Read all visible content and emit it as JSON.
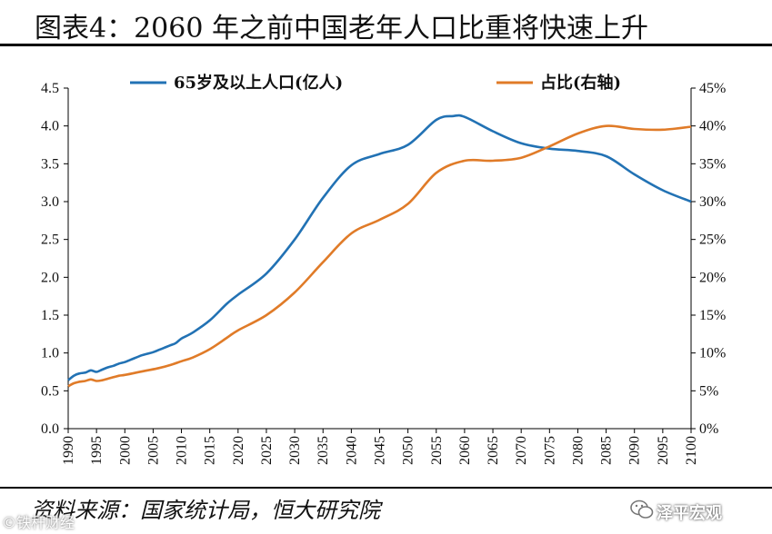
{
  "title": "图表4：2060 年之前中国老年人口比重将快速上升",
  "source": "资料来源：国家统计局，恒大研究院",
  "brand": "泽平宏观",
  "watermark": "©铁杆财经",
  "colors": {
    "primary_series": "#2272B4",
    "secondary_series": "#E07B28"
  },
  "chart_data": {
    "type": "line",
    "title": "",
    "x_categories": [
      1990,
      1995,
      2000,
      2005,
      2010,
      2015,
      2020,
      2025,
      2030,
      2035,
      2040,
      2045,
      2050,
      2055,
      2060,
      2065,
      2070,
      2075,
      2080,
      2085,
      2090,
      2095,
      2100
    ],
    "y_left": {
      "min": 0,
      "max": 4.5,
      "ticks": [
        "0.0",
        "0.5",
        "1.0",
        "1.5",
        "2.0",
        "2.5",
        "3.0",
        "3.5",
        "4.0",
        "4.5"
      ]
    },
    "y_right": {
      "min": 0,
      "max": 45,
      "ticks": [
        "0%",
        "5%",
        "10%",
        "15%",
        "20%",
        "25%",
        "30%",
        "35%",
        "40%",
        "45%"
      ]
    },
    "legend_position": "top",
    "series": [
      {
        "name": "65岁及以上人口(亿人)",
        "axis": "left",
        "x": [
          1990,
          1991,
          1992,
          1993,
          1994,
          1995,
          1996,
          1997,
          1998,
          1999,
          2000,
          2001,
          2002,
          2003,
          2004,
          2005,
          2006,
          2007,
          2008,
          2009,
          2010,
          2012,
          2015,
          2018,
          2020,
          2025,
          2030,
          2035,
          2040,
          2045,
          2050,
          2055,
          2058,
          2060,
          2065,
          2070,
          2075,
          2080,
          2085,
          2090,
          2095,
          2100
        ],
        "values": [
          0.64,
          0.7,
          0.73,
          0.74,
          0.77,
          0.75,
          0.78,
          0.81,
          0.83,
          0.86,
          0.88,
          0.91,
          0.94,
          0.97,
          0.99,
          1.01,
          1.04,
          1.07,
          1.1,
          1.13,
          1.19,
          1.27,
          1.43,
          1.65,
          1.77,
          2.05,
          2.5,
          3.05,
          3.48,
          3.63,
          3.75,
          4.08,
          4.13,
          4.12,
          3.93,
          3.77,
          3.7,
          3.67,
          3.6,
          3.36,
          3.15,
          3.0
        ]
      },
      {
        "name": "占比(右轴)",
        "axis": "right",
        "x": [
          1990,
          1991,
          1992,
          1993,
          1994,
          1995,
          1996,
          1997,
          1998,
          1999,
          2000,
          2002,
          2004,
          2006,
          2008,
          2010,
          2012,
          2015,
          2018,
          2020,
          2025,
          2030,
          2035,
          2040,
          2045,
          2050,
          2055,
          2060,
          2065,
          2070,
          2075,
          2080,
          2085,
          2090,
          2095,
          2100
        ],
        "values": [
          5.6,
          6.0,
          6.2,
          6.3,
          6.5,
          6.3,
          6.4,
          6.6,
          6.8,
          7.0,
          7.1,
          7.4,
          7.7,
          8.0,
          8.4,
          8.9,
          9.4,
          10.5,
          12.0,
          13.0,
          15.0,
          18.0,
          22.0,
          25.8,
          27.6,
          29.7,
          33.8,
          35.4,
          35.4,
          35.8,
          37.3,
          39.0,
          40.0,
          39.6,
          39.5,
          39.9
        ]
      }
    ]
  }
}
